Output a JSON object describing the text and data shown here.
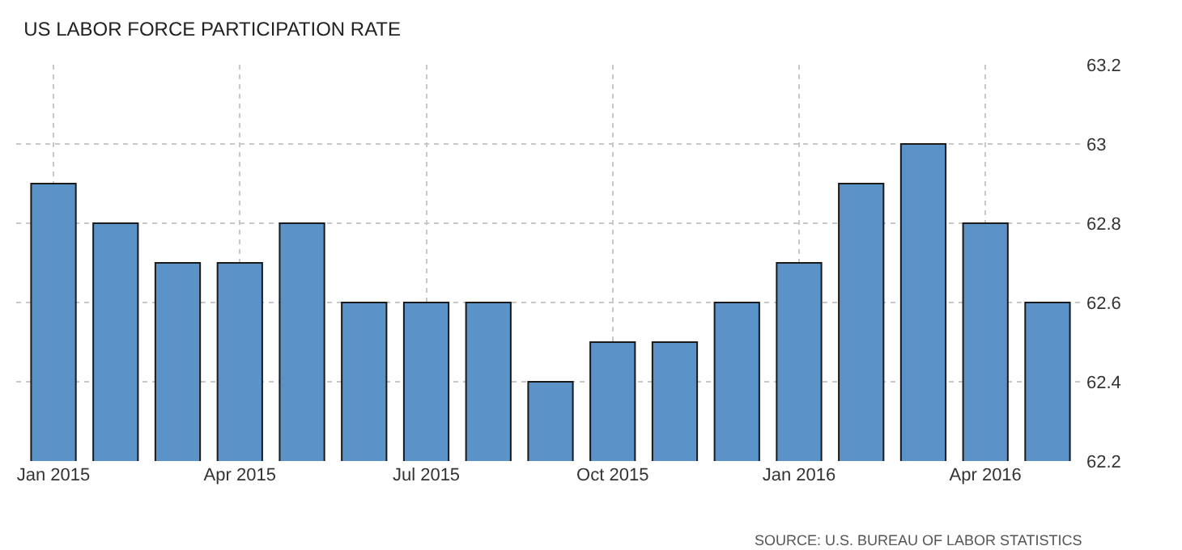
{
  "chart_data": {
    "type": "bar",
    "title": "US LABOR FORCE PARTICIPATION RATE",
    "categories": [
      "Jan 2015",
      null,
      null,
      "Apr 2015",
      null,
      null,
      "Jul 2015",
      null,
      null,
      "Oct 2015",
      null,
      null,
      "Jan 2016",
      null,
      null,
      "Apr 2016",
      null
    ],
    "values": [
      62.9,
      62.8,
      62.7,
      62.7,
      62.8,
      62.6,
      62.6,
      62.6,
      62.4,
      62.5,
      62.5,
      62.6,
      62.7,
      62.9,
      63.0,
      62.8,
      62.6
    ],
    "color": "#5b93c8",
    "ylim": [
      62.2,
      63.2
    ],
    "yticks": [
      62.2,
      62.4,
      62.6,
      62.8,
      63,
      63.2
    ],
    "grid": true,
    "annotations": [
      "SOURCE: U.S. BUREAU OF LABOR STATISTICS"
    ]
  }
}
